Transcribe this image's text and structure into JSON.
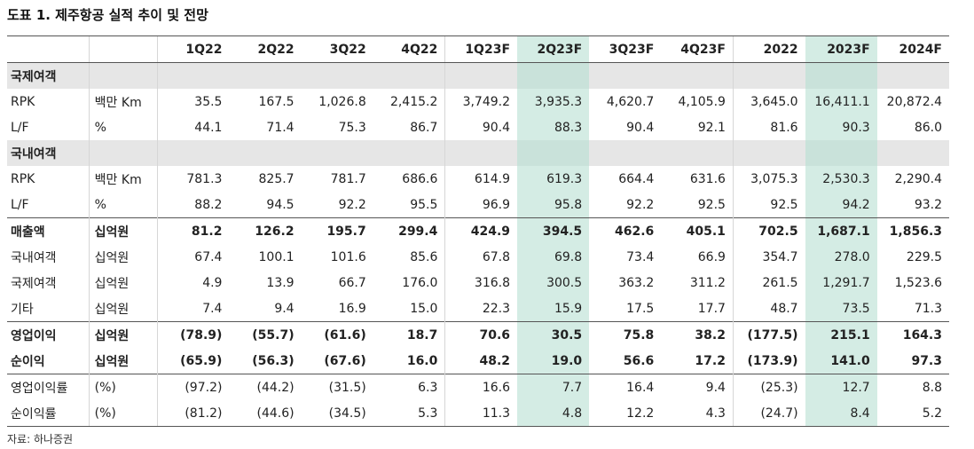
{
  "title": "도표 1. 제주항공 실적 추이 및 전망",
  "headers": [
    "",
    "",
    "1Q22",
    "2Q22",
    "3Q22",
    "4Q22",
    "1Q23F",
    "2Q23F",
    "3Q23F",
    "4Q23F",
    "2022",
    "2023F",
    "2024F"
  ],
  "rows": [
    {
      "label": "국제여객",
      "unit": "",
      "section": true,
      "values": [
        "",
        "",
        "",
        "",
        "",
        "",
        "",
        "",
        "",
        "",
        ""
      ]
    },
    {
      "label": "RPK",
      "unit": "백만 Km",
      "values": [
        "35.5",
        "167.5",
        "1,026.8",
        "2,415.2",
        "3,749.2",
        "3,935.3",
        "4,620.7",
        "4,105.9",
        "3,645.0",
        "16,411.1",
        "20,872.4"
      ]
    },
    {
      "label": "L/F",
      "unit": "%",
      "values": [
        "44.1",
        "71.4",
        "75.3",
        "86.7",
        "90.4",
        "88.3",
        "90.4",
        "92.1",
        "81.6",
        "90.3",
        "86.0"
      ]
    },
    {
      "label": "국내여객",
      "unit": "",
      "section": true,
      "values": [
        "",
        "",
        "",
        "",
        "",
        "",
        "",
        "",
        "",
        "",
        ""
      ]
    },
    {
      "label": "RPK",
      "unit": "백만 Km",
      "values": [
        "781.3",
        "825.7",
        "781.7",
        "686.6",
        "614.9",
        "619.3",
        "664.4",
        "631.6",
        "3,075.3",
        "2,530.3",
        "2,290.4"
      ]
    },
    {
      "label": "L/F",
      "unit": "%",
      "values": [
        "88.2",
        "94.5",
        "92.2",
        "95.5",
        "96.9",
        "95.8",
        "92.2",
        "92.5",
        "92.5",
        "94.2",
        "93.2"
      ]
    },
    {
      "label": "매출액",
      "unit": "십억원",
      "bold": true,
      "topline": true,
      "values": [
        "81.2",
        "126.2",
        "195.7",
        "299.4",
        "424.9",
        "394.5",
        "462.6",
        "405.1",
        "702.5",
        "1,687.1",
        "1,856.3"
      ]
    },
    {
      "label": "국내여객",
      "unit": "십억원",
      "values": [
        "67.4",
        "100.1",
        "101.6",
        "85.6",
        "67.8",
        "69.8",
        "73.4",
        "66.9",
        "354.7",
        "278.0",
        "229.5"
      ]
    },
    {
      "label": "국제여객",
      "unit": "십억원",
      "values": [
        "4.9",
        "13.9",
        "66.7",
        "176.0",
        "316.8",
        "300.5",
        "363.2",
        "311.2",
        "261.5",
        "1,291.7",
        "1,523.6"
      ]
    },
    {
      "label": "기타",
      "unit": "십억원",
      "values": [
        "7.4",
        "9.4",
        "16.9",
        "15.0",
        "22.3",
        "15.9",
        "17.5",
        "17.7",
        "48.7",
        "73.5",
        "71.3"
      ]
    },
    {
      "label": "영업이익",
      "unit": "십억원",
      "bold": true,
      "topline": true,
      "values": [
        "(78.9)",
        "(55.7)",
        "(61.6)",
        "18.7",
        "70.6",
        "30.5",
        "75.8",
        "38.2",
        "(177.5)",
        "215.1",
        "164.3"
      ]
    },
    {
      "label": "순이익",
      "unit": "십억원",
      "bold": true,
      "values": [
        "(65.9)",
        "(56.3)",
        "(67.6)",
        "16.0",
        "48.2",
        "19.0",
        "56.6",
        "17.2",
        "(173.9)",
        "141.0",
        "97.3"
      ]
    },
    {
      "label": "영업이익률",
      "unit": "(%)",
      "topline": true,
      "values": [
        "(97.2)",
        "(44.2)",
        "(31.5)",
        "6.3",
        "16.6",
        "7.7",
        "16.4",
        "9.4",
        "(25.3)",
        "12.7",
        "8.8"
      ]
    },
    {
      "label": "순이익률",
      "unit": "(%)",
      "last": true,
      "values": [
        "(81.2)",
        "(44.6)",
        "(34.5)",
        "5.3",
        "11.3",
        "4.8",
        "12.2",
        "4.3",
        "(24.7)",
        "8.4",
        "5.2"
      ]
    }
  ],
  "highlight_color": "#d4ece4",
  "source": "자료: 하나증권"
}
